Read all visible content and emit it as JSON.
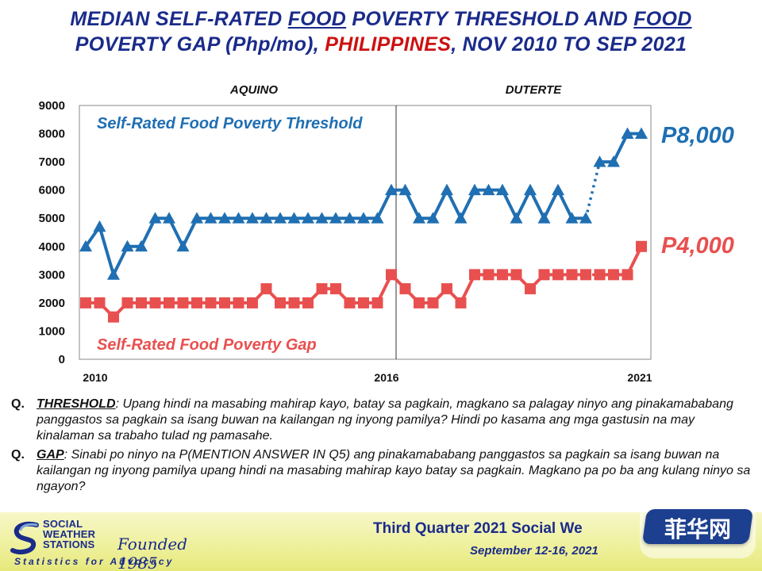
{
  "title": {
    "line1_a": "MEDIAN SELF-RATED ",
    "line1_b": "FOOD",
    "line1_c": " POVERTY THRESHOLD AND ",
    "line1_d": "FOOD",
    "line2_a": "POVERTY GAP (Php/mo), ",
    "line2_b": "PHILIPPINES",
    "line2_c": ", NOV 2010 TO SEP 2021"
  },
  "chart_data": {
    "type": "line",
    "ylim": [
      0,
      9000
    ],
    "yticks": [
      "0",
      "1000",
      "2000",
      "3000",
      "4000",
      "5000",
      "6000",
      "7000",
      "8000",
      "9000"
    ],
    "xticks": [
      "2010",
      "2016",
      "2021"
    ],
    "periods": [
      "AQUINO",
      "DUTERTE"
    ],
    "series": [
      {
        "name": "Self-Rated Food Poverty Threshold",
        "color": "#1f6fb2",
        "end_label": "P8,000",
        "values": [
          4000,
          4700,
          3000,
          4000,
          4000,
          5000,
          5000,
          4000,
          5000,
          5000,
          5000,
          5000,
          5000,
          5000,
          5000,
          5000,
          5000,
          5000,
          5000,
          5000,
          5000,
          5000,
          6000,
          6000,
          5000,
          5000,
          6000,
          5000,
          6000,
          6000,
          6000,
          5000,
          6000,
          5000,
          6000,
          5000,
          5000,
          7000,
          7000,
          8000,
          8000
        ]
      },
      {
        "name": "Self-Rated Food Poverty Gap",
        "color": "#e8504f",
        "end_label": "P4,000",
        "values": [
          2000,
          2000,
          1500,
          2000,
          2000,
          2000,
          2000,
          2000,
          2000,
          2000,
          2000,
          2000,
          2000,
          2500,
          2000,
          2000,
          2000,
          2500,
          2500,
          2000,
          2000,
          2000,
          3000,
          2500,
          2000,
          2000,
          2500,
          2000,
          3000,
          3000,
          3000,
          3000,
          2500,
          3000,
          3000,
          3000,
          3000,
          3000,
          3000,
          3000,
          4000
        ]
      }
    ]
  },
  "questions": [
    {
      "label": "Q.",
      "key": "THRESHOLD",
      "text": ": Upang hindi na masabing mahirap kayo, batay sa pagkain, magkano sa palagay ninyo ang pinakamababang panggastos sa pagkain sa isang buwan na kailangan ng inyong pamilya? Hindi po kasama ang mga gastusin na may kinalaman sa trabaho tulad ng pamasahe."
    },
    {
      "label": "Q.",
      "key": "GAP",
      "text": ": Sinabi po ninyo na P(MENTION ANSWER IN Q5) ang pinakamababang panggastos sa pagkain sa isang buwan na kailangan ng inyong pamilya upang hindi na masabing mahirap kayo batay sa pagkain. Magkano pa po ba ang kulang ninyo sa ngayon?"
    }
  ],
  "footer": {
    "org_line1": "SOCIAL",
    "org_line2": "WEATHER",
    "org_line3": "STATIONS",
    "founded": "Founded 1985",
    "tagline": "Statistics for Advocacy",
    "report": "Third Quarter 2021 Social We",
    "dates": "September 12-16, 2021"
  },
  "watermark": {
    "text": "菲华网"
  }
}
